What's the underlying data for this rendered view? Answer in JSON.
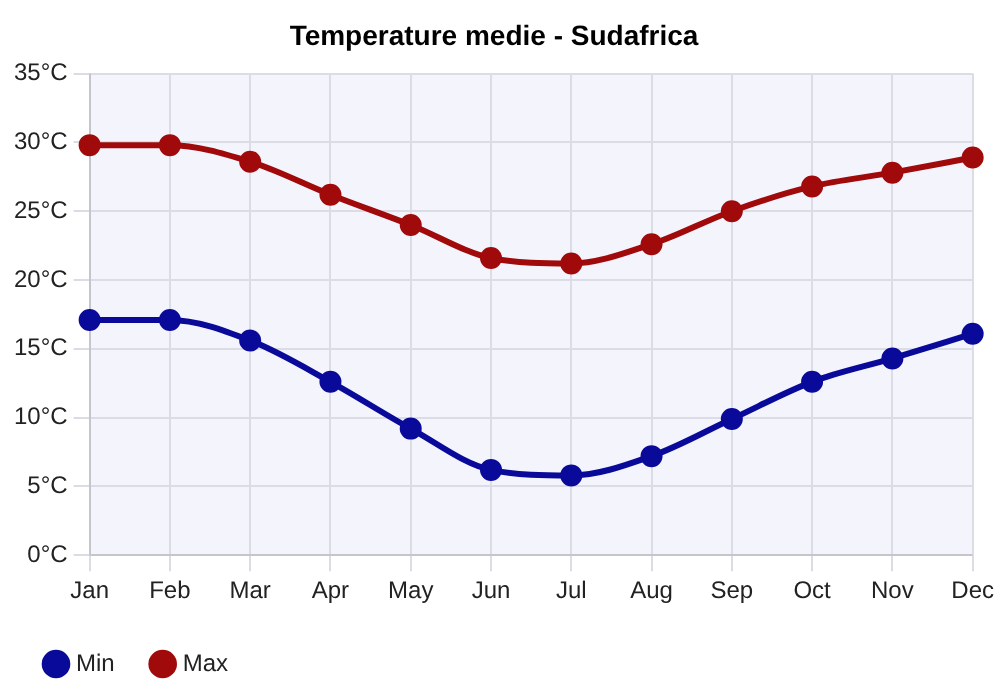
{
  "chart_data": {
    "type": "line",
    "title": "Temperature medie - Sudafrica",
    "categories": [
      "Jan",
      "Feb",
      "Mar",
      "Apr",
      "May",
      "Jun",
      "Jul",
      "Aug",
      "Sep",
      "Oct",
      "Nov",
      "Dec"
    ],
    "series": [
      {
        "name": "Min",
        "color": "#0a0a9a",
        "values": [
          17.1,
          17.1,
          15.6,
          12.6,
          9.2,
          6.2,
          5.8,
          7.2,
          9.9,
          12.6,
          14.3,
          16.1
        ]
      },
      {
        "name": "Max",
        "color": "#a00a0a",
        "values": [
          29.8,
          29.8,
          28.6,
          26.2,
          24.0,
          21.6,
          21.2,
          22.6,
          25.0,
          26.8,
          27.8,
          28.9
        ]
      }
    ],
    "ylim": [
      0,
      35
    ],
    "yticks": [
      {
        "value": 0,
        "label": "0°C"
      },
      {
        "value": 5,
        "label": "5°C"
      },
      {
        "value": 10,
        "label": "10°C"
      },
      {
        "value": 15,
        "label": "15°C"
      },
      {
        "value": 20,
        "label": "20°C"
      },
      {
        "value": 25,
        "label": "25°C"
      },
      {
        "value": 30,
        "label": "30°C"
      },
      {
        "value": 35,
        "label": "35°C"
      }
    ],
    "grid": true,
    "legend": "bottom left",
    "marker": "circle",
    "line_style": "solid"
  }
}
